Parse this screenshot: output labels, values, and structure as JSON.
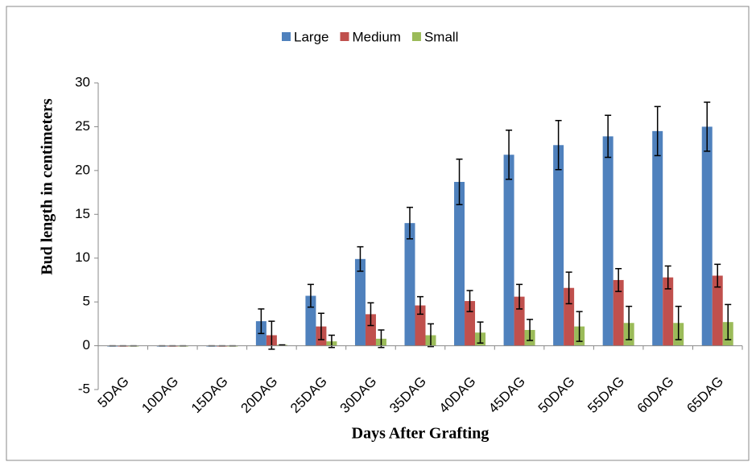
{
  "chart_data": {
    "type": "bar",
    "x_label": "Days After Grafting",
    "y_label": "Bud length in centimeters",
    "categories": [
      "5DAG",
      "10DAG",
      "15DAG",
      "20DAG",
      "25DAG",
      "30DAG",
      "35DAG",
      "40DAG",
      "45DAG",
      "50DAG",
      "55DAG",
      "60DAG",
      "65DAG"
    ],
    "series": [
      {
        "name": "Large",
        "color": "#4f81bd",
        "values": [
          0,
          0,
          0,
          2.8,
          5.7,
          9.9,
          14.0,
          18.7,
          21.8,
          22.9,
          23.9,
          24.5,
          25.0
        ],
        "errors": [
          0,
          0,
          0,
          1.4,
          1.3,
          1.4,
          1.8,
          2.6,
          2.8,
          2.8,
          2.4,
          2.8,
          2.8
        ]
      },
      {
        "name": "Medium",
        "color": "#c0504d",
        "values": [
          0,
          0,
          0,
          1.2,
          2.2,
          3.6,
          4.6,
          5.1,
          5.6,
          6.6,
          7.5,
          7.8,
          8.0
        ],
        "errors": [
          0,
          0,
          0,
          1.6,
          1.5,
          1.3,
          1.0,
          1.2,
          1.4,
          1.8,
          1.3,
          1.3,
          1.3
        ]
      },
      {
        "name": "Small",
        "color": "#9bbb59",
        "values": [
          0,
          0,
          0,
          0.1,
          0.5,
          0.8,
          1.2,
          1.5,
          1.8,
          2.2,
          2.6,
          2.6,
          2.7
        ],
        "errors": [
          0,
          0,
          0,
          0,
          0.7,
          1.0,
          1.3,
          1.2,
          1.2,
          1.7,
          1.9,
          1.9,
          2.0
        ]
      }
    ],
    "ylim": [
      -5,
      30
    ],
    "yticks": [
      -5,
      0,
      5,
      10,
      15,
      20,
      25,
      30
    ],
    "grid": false,
    "legend": "top"
  }
}
